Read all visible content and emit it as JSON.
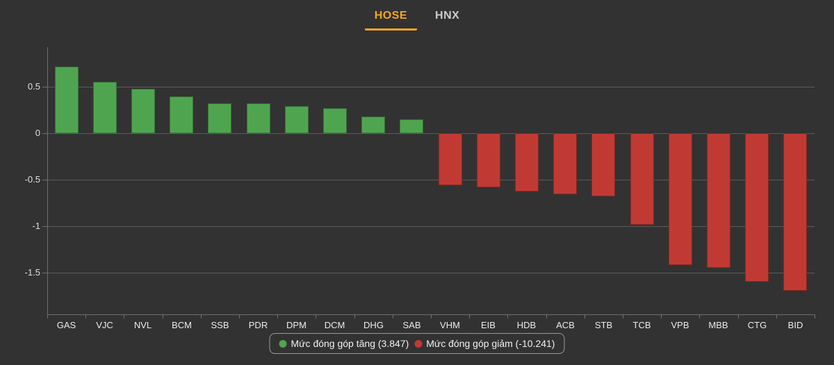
{
  "tabs": [
    {
      "label": "HOSE",
      "active": true
    },
    {
      "label": "HNX",
      "active": false
    }
  ],
  "colors": {
    "background": "#323232",
    "positive": "#4fa54f",
    "negative": "#c03a33",
    "accent_orange": "#f5a623",
    "grid": "#5c5c5c",
    "axis": "#707070",
    "text": "#e8e8e8",
    "inactive_tab": "#cccccc",
    "legend_border": "#9a9a9a"
  },
  "chart_data": {
    "type": "bar",
    "title": "",
    "xlabel": "",
    "ylabel": "",
    "categories": [
      "GAS",
      "VJC",
      "NVL",
      "BCM",
      "SSB",
      "PDR",
      "DPM",
      "DCM",
      "DHG",
      "SAB",
      "VHM",
      "EIB",
      "HDB",
      "ACB",
      "STB",
      "TCB",
      "VPB",
      "MBB",
      "CTG",
      "BID"
    ],
    "values": [
      0.72,
      0.55,
      0.48,
      0.4,
      0.32,
      0.32,
      0.29,
      0.27,
      0.18,
      0.15,
      -0.56,
      -0.58,
      -0.63,
      -0.66,
      -0.68,
      -0.99,
      -1.42,
      -1.45,
      -1.6,
      -1.7
    ],
    "ylim": [
      -1.95,
      0.93
    ],
    "yticks": [
      0.5,
      0,
      -0.5,
      -1,
      -1.5
    ],
    "ytick_labels": [
      "0.5",
      "0",
      "-0.5",
      "-1",
      "-1.5"
    ],
    "grid": true,
    "legend_position": "bottom"
  },
  "legend": {
    "increase_label": "Mức đóng góp tăng (3.847)",
    "decrease_label": "Mức đóng góp giảm (-10.241)"
  }
}
